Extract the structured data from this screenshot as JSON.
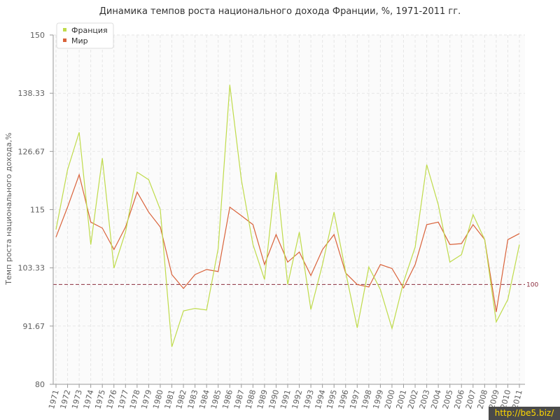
{
  "chart_data": {
    "type": "line",
    "title": "Динамика темпов роста национального дохода Франции, %, 1971-2011 гг.",
    "ylabel": "Темп роста национального дохода,%",
    "xlabel": "",
    "ylim": [
      80,
      150
    ],
    "yticks": [
      "80",
      "91.67",
      "103.33",
      "115",
      "126.67",
      "138.33",
      "150"
    ],
    "grid": true,
    "legend_position": "top-left",
    "categories": [
      "1971",
      "1972",
      "1973",
      "1974",
      "1975",
      "1976",
      "1977",
      "1978",
      "1979",
      "1980",
      "1981",
      "1982",
      "1983",
      "1984",
      "1985",
      "1986",
      "1987",
      "1988",
      "1989",
      "1990",
      "1991",
      "1992",
      "1993",
      "1994",
      "1995",
      "1996",
      "1997",
      "1998",
      "1999",
      "2000",
      "2001",
      "2002",
      "2003",
      "2004",
      "2005",
      "2006",
      "2007",
      "2008",
      "2009",
      "2010",
      "2011"
    ],
    "series": [
      {
        "name": "Франция",
        "color": "#bfdb4a",
        "values": [
          111.0,
          123.0,
          130.5,
          108.0,
          125.3,
          103.3,
          110.5,
          122.5,
          121.0,
          115.0,
          87.5,
          94.7,
          95.2,
          94.9,
          107.2,
          140.0,
          121.0,
          108.0,
          101.0,
          122.5,
          100.0,
          110.5,
          95.0,
          104.0,
          114.5,
          102.5,
          91.3,
          103.5,
          99.0,
          91.2,
          100.5,
          107.5,
          124.0,
          116.0,
          104.5,
          106.0,
          114.0,
          109.0,
          92.5,
          97.0,
          108.0
        ]
      },
      {
        "name": "Мир",
        "color": "#d9623a",
        "values": [
          109.5,
          115.5,
          122.0,
          112.5,
          111.3,
          107.0,
          111.5,
          118.5,
          114.5,
          111.5,
          102.0,
          99.2,
          102.0,
          103.0,
          102.6,
          115.5,
          113.8,
          112.0,
          104.0,
          110.0,
          104.5,
          106.5,
          101.8,
          107.0,
          110.0,
          102.3,
          100.0,
          99.5,
          104.0,
          103.2,
          99.3,
          104.0,
          112.0,
          112.5,
          108.0,
          108.2,
          112.0,
          109.0,
          94.5,
          109.0,
          110.2
        ]
      }
    ],
    "reference_line": {
      "value": 100,
      "label": "100",
      "color": "#8b2c3d"
    }
  },
  "watermark": "http://be5.biz/"
}
